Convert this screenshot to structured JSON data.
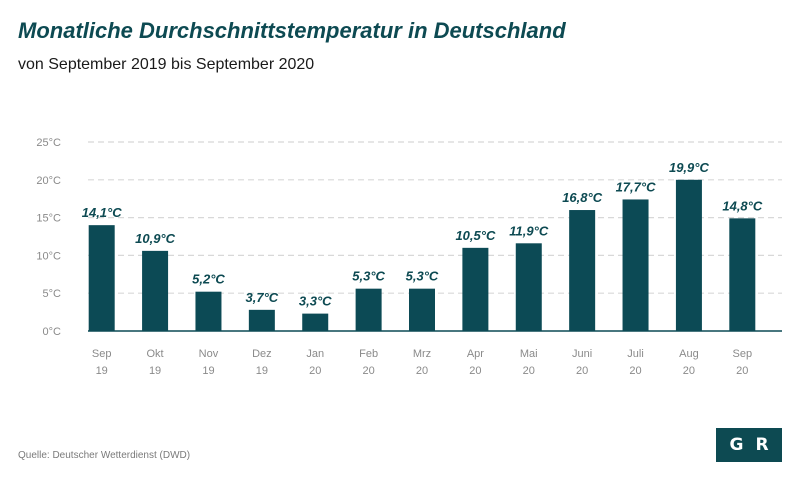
{
  "title": "Monatliche Durchschnittstemperatur in Deutschland",
  "subtitle": "von September 2019 bis September 2020",
  "source": "Quelle: Deutscher Wetterdienst (DWD)",
  "logo": {
    "letter1": "G",
    "letter2": "R"
  },
  "colors": {
    "bar": "#0c4a55",
    "title": "#0d4a52",
    "grid": "#d8d8d8",
    "axis_text": "#8a8a8a"
  },
  "chart_data": {
    "type": "bar",
    "categories": [
      [
        "Sep",
        "19"
      ],
      [
        "Okt",
        "19"
      ],
      [
        "Nov",
        "19"
      ],
      [
        "Dez",
        "19"
      ],
      [
        "Jan",
        "20"
      ],
      [
        "Feb",
        "20"
      ],
      [
        "Mrz",
        "20"
      ],
      [
        "Apr",
        "20"
      ],
      [
        "Mai",
        "20"
      ],
      [
        "Juni",
        "20"
      ],
      [
        "Juli",
        "20"
      ],
      [
        "Aug",
        "20"
      ],
      [
        "Sep",
        "20"
      ]
    ],
    "values": [
      14.1,
      10.9,
      5.2,
      3.7,
      3.3,
      5.3,
      5.3,
      10.5,
      11.9,
      16.8,
      17.7,
      19.9,
      14.8
    ],
    "bar_heights": [
      14.0,
      10.6,
      5.2,
      2.8,
      2.3,
      5.6,
      5.6,
      11.0,
      11.6,
      16.0,
      17.4,
      20.0,
      14.9
    ],
    "data_labels": [
      "14,1°C",
      "10,9°C",
      "5,2°C",
      "3,7°C",
      "3,3°C",
      "5,3°C",
      "5,3°C",
      "10,5°C",
      "11,9°C",
      "16,8°C",
      "17,7°C",
      "19,9°C",
      "14,8°C"
    ],
    "y_ticks": [
      "0°C",
      "5°C",
      "10°C",
      "15°C",
      "20°C",
      "25°C"
    ],
    "ylim": [
      0,
      25
    ],
    "grid": true
  }
}
